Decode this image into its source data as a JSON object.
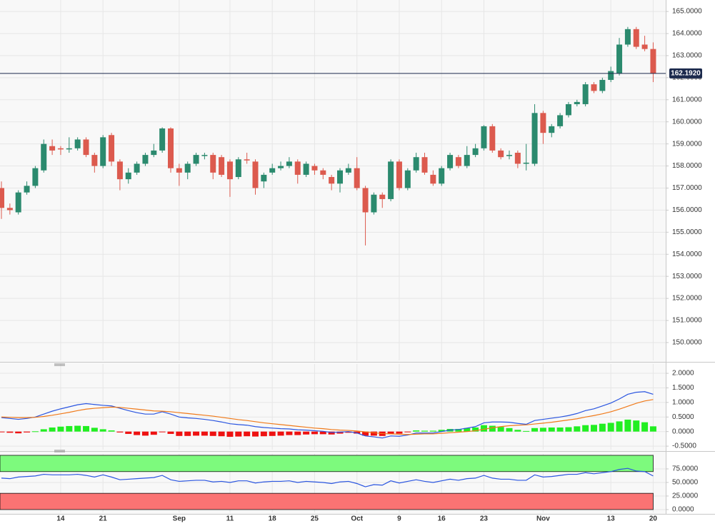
{
  "chart_data": [
    {
      "type": "candlestick",
      "categories": [
        null,
        null,
        null,
        null,
        null,
        null,
        null,
        "14",
        null,
        null,
        null,
        null,
        "21",
        null,
        null,
        null,
        null,
        null,
        null,
        null,
        null,
        "Sep",
        null,
        null,
        null,
        null,
        null,
        "11",
        null,
        null,
        null,
        null,
        "18",
        null,
        null,
        null,
        null,
        "25",
        null,
        null,
        null,
        null,
        "Oct",
        null,
        null,
        null,
        null,
        "9",
        null,
        null,
        null,
        null,
        "16",
        null,
        null,
        null,
        null,
        "23",
        null,
        null,
        null,
        null,
        null,
        null,
        "Nov",
        null,
        null,
        null,
        null,
        null,
        null,
        null,
        "13",
        null,
        null,
        null,
        null,
        "20"
      ],
      "open": [
        157.0,
        156.1,
        155.9,
        156.8,
        157.1,
        157.8,
        158.9,
        158.8,
        158.75,
        158.8,
        159.2,
        158.5,
        158.0,
        159.4,
        158.2,
        157.4,
        157.7,
        158.1,
        158.5,
        158.7,
        159.7,
        157.9,
        157.7,
        158.1,
        158.45,
        158.5,
        158.4,
        158.2,
        157.5,
        158.3,
        158.2,
        157.3,
        157.7,
        157.9,
        158.0,
        158.2,
        157.6,
        158.0,
        157.8,
        157.5,
        157.2,
        157.7,
        157.9,
        157.0,
        155.9,
        156.7,
        156.5,
        158.2,
        157.0,
        157.8,
        158.4,
        157.6,
        157.2,
        157.9,
        158.4,
        158.0,
        158.5,
        158.8,
        159.8,
        158.7,
        158.45,
        158.6,
        158.1,
        158.1,
        160.4,
        159.5,
        159.8,
        160.3,
        160.8,
        160.8,
        161.7,
        161.4,
        161.9,
        162.2,
        163.5,
        164.2,
        163.5,
        163.3
      ],
      "high": [
        157.3,
        156.3,
        156.9,
        157.3,
        158.0,
        159.2,
        159.2,
        158.9,
        159.3,
        159.3,
        159.3,
        158.6,
        159.4,
        159.5,
        158.3,
        157.9,
        158.2,
        158.6,
        159.0,
        159.75,
        159.75,
        158.1,
        158.2,
        158.6,
        158.6,
        158.6,
        158.5,
        158.3,
        158.4,
        158.6,
        158.3,
        157.7,
        158.1,
        158.2,
        158.4,
        158.3,
        158.2,
        158.1,
        157.9,
        157.6,
        157.9,
        158.1,
        158.4,
        157.1,
        156.8,
        156.8,
        158.3,
        158.3,
        157.9,
        158.6,
        158.6,
        157.8,
        158.0,
        158.6,
        158.5,
        158.9,
        159.0,
        159.85,
        159.9,
        158.8,
        158.7,
        158.7,
        159.0,
        160.8,
        160.5,
        159.9,
        160.4,
        160.9,
        161.0,
        161.8,
        161.8,
        162.0,
        162.5,
        163.8,
        164.3,
        164.3,
        163.9,
        163.6
      ],
      "low": [
        155.6,
        155.8,
        155.8,
        156.7,
        157.0,
        157.7,
        158.5,
        158.5,
        158.6,
        158.7,
        158.4,
        157.7,
        157.9,
        158.0,
        156.9,
        157.2,
        157.6,
        158.0,
        158.4,
        158.6,
        157.7,
        157.1,
        157.4,
        158.0,
        158.3,
        157.4,
        157.5,
        156.6,
        157.4,
        158.1,
        156.7,
        157.0,
        157.6,
        157.8,
        157.9,
        157.2,
        157.5,
        157.6,
        157.4,
        156.9,
        156.8,
        157.6,
        156.9,
        154.4,
        155.8,
        156.1,
        156.4,
        156.9,
        156.9,
        157.7,
        157.6,
        157.1,
        157.1,
        157.8,
        157.9,
        157.9,
        158.4,
        158.7,
        158.6,
        158.3,
        158.3,
        157.9,
        157.8,
        158.0,
        159.0,
        159.3,
        159.7,
        160.2,
        160.7,
        160.7,
        161.3,
        161.3,
        161.8,
        162.1,
        163.4,
        163.3,
        163.2,
        161.8
      ],
      "close": [
        156.1,
        156.0,
        156.8,
        157.1,
        157.9,
        159.0,
        158.7,
        158.75,
        158.8,
        159.2,
        158.5,
        158.0,
        159.3,
        158.2,
        157.4,
        157.7,
        158.1,
        158.5,
        158.7,
        159.7,
        157.9,
        157.7,
        158.1,
        158.5,
        158.5,
        157.7,
        157.6,
        157.4,
        158.3,
        158.25,
        157.0,
        157.6,
        157.9,
        158.0,
        158.2,
        157.6,
        158.1,
        157.8,
        157.6,
        157.2,
        157.8,
        157.9,
        157.0,
        155.9,
        156.7,
        156.5,
        158.2,
        157.0,
        157.8,
        158.4,
        157.7,
        157.2,
        157.9,
        158.5,
        158.0,
        158.5,
        158.8,
        159.8,
        158.7,
        158.4,
        158.5,
        158.1,
        158.15,
        160.4,
        159.5,
        159.8,
        160.3,
        160.8,
        160.9,
        161.7,
        161.4,
        161.9,
        162.3,
        163.5,
        164.2,
        163.4,
        163.3,
        162.192
      ],
      "up_color": "#2b8a6e",
      "down_color": "#dc5a4e",
      "ylim": [
        149.19,
        165.52
      ],
      "yticks": [
        {
          "value": 150,
          "label": "150.0000"
        },
        {
          "value": 151,
          "label": "151.0000"
        },
        {
          "value": 152,
          "label": "152.0000"
        },
        {
          "value": 153,
          "label": "153.0000"
        },
        {
          "value": 154,
          "label": "154.0000"
        },
        {
          "value": 155,
          "label": "155.0000"
        },
        {
          "value": 156,
          "label": "156.0000"
        },
        {
          "value": 157,
          "label": "157.0000"
        },
        {
          "value": 158,
          "label": "158.0000"
        },
        {
          "value": 159,
          "label": "159.0000"
        },
        {
          "value": 160,
          "label": "160.0000"
        },
        {
          "value": 161,
          "label": "161.0000"
        },
        {
          "value": 162,
          "label": "162.0000"
        },
        {
          "value": 163,
          "label": "163.0000"
        },
        {
          "value": 164,
          "label": "164.0000"
        },
        {
          "value": 165,
          "label": "165.0000"
        }
      ],
      "last_price": {
        "value": 162.192,
        "label": "162.1920",
        "color": "#1c2a4d"
      },
      "grid": true
    },
    {
      "type": "macd",
      "series": [
        {
          "kind": "histogram",
          "positive_color": "#22ee22",
          "negative_color": "#ee1111",
          "values": [
            -0.02,
            -0.04,
            -0.06,
            -0.03,
            0.01,
            0.08,
            0.14,
            0.17,
            0.19,
            0.2,
            0.19,
            0.13,
            0.08,
            0.04,
            -0.03,
            -0.08,
            -0.12,
            -0.14,
            -0.11,
            -0.02,
            -0.08,
            -0.15,
            -0.15,
            -0.14,
            -0.14,
            -0.15,
            -0.16,
            -0.18,
            -0.17,
            -0.16,
            -0.17,
            -0.16,
            -0.15,
            -0.14,
            -0.12,
            -0.12,
            -0.1,
            -0.09,
            -0.09,
            -0.1,
            -0.07,
            -0.04,
            -0.07,
            -0.14,
            -0.14,
            -0.15,
            -0.07,
            -0.07,
            -0.02,
            0.04,
            0.03,
            0.03,
            0.06,
            0.09,
            0.09,
            0.12,
            0.14,
            0.22,
            0.2,
            0.16,
            0.12,
            0.06,
            0.02,
            0.12,
            0.13,
            0.14,
            0.14,
            0.15,
            0.18,
            0.22,
            0.23,
            0.27,
            0.3,
            0.35,
            0.41,
            0.38,
            0.32,
            0.18
          ]
        },
        {
          "kind": "line",
          "color": "#2a55e0",
          "values": [
            0.48,
            0.45,
            0.42,
            0.45,
            0.5,
            0.6,
            0.7,
            0.78,
            0.85,
            0.92,
            0.96,
            0.93,
            0.9,
            0.88,
            0.8,
            0.72,
            0.65,
            0.6,
            0.6,
            0.68,
            0.6,
            0.5,
            0.47,
            0.45,
            0.42,
            0.38,
            0.33,
            0.27,
            0.24,
            0.22,
            0.17,
            0.14,
            0.12,
            0.1,
            0.09,
            0.06,
            0.05,
            0.03,
            0.01,
            -0.03,
            -0.02,
            0.0,
            -0.05,
            -0.15,
            -0.18,
            -0.22,
            -0.15,
            -0.16,
            -0.12,
            -0.05,
            -0.05,
            -0.05,
            0.0,
            0.05,
            0.07,
            0.12,
            0.17,
            0.3,
            0.33,
            0.33,
            0.32,
            0.28,
            0.25,
            0.38,
            0.42,
            0.46,
            0.5,
            0.55,
            0.62,
            0.72,
            0.78,
            0.88,
            0.98,
            1.12,
            1.28,
            1.35,
            1.37,
            1.28
          ]
        },
        {
          "kind": "line",
          "color": "#f07a1a",
          "values": [
            0.5,
            0.49,
            0.48,
            0.48,
            0.49,
            0.52,
            0.56,
            0.61,
            0.66,
            0.72,
            0.77,
            0.8,
            0.82,
            0.84,
            0.83,
            0.8,
            0.77,
            0.74,
            0.71,
            0.7,
            0.68,
            0.65,
            0.62,
            0.59,
            0.56,
            0.53,
            0.49,
            0.45,
            0.41,
            0.38,
            0.34,
            0.3,
            0.27,
            0.24,
            0.21,
            0.18,
            0.15,
            0.12,
            0.1,
            0.07,
            0.05,
            0.04,
            0.02,
            -0.01,
            -0.04,
            -0.07,
            -0.08,
            -0.09,
            -0.1,
            -0.09,
            -0.08,
            -0.08,
            -0.06,
            -0.04,
            -0.02,
            0.0,
            0.03,
            0.08,
            0.13,
            0.17,
            0.2,
            0.22,
            0.23,
            0.26,
            0.29,
            0.32,
            0.36,
            0.4,
            0.44,
            0.5,
            0.55,
            0.61,
            0.68,
            0.77,
            0.87,
            0.97,
            1.05,
            1.1
          ]
        }
      ],
      "ylim": [
        -0.62,
        2.32
      ],
      "yticks": [
        {
          "value": 2,
          "label": "2.0000"
        },
        {
          "value": 1.5,
          "label": "1.5000"
        },
        {
          "value": 1,
          "label": "1.0000"
        },
        {
          "value": 0.5,
          "label": "0.5000"
        },
        {
          "value": 0,
          "label": "0.0000"
        },
        {
          "value": -0.5,
          "label": "-0.5000"
        }
      ],
      "grid": true
    },
    {
      "type": "rsi",
      "values": [
        58,
        57,
        60,
        61,
        62,
        65,
        64,
        64,
        64,
        65,
        63,
        60,
        64,
        60,
        55,
        56,
        57,
        58,
        59,
        63,
        55,
        52,
        53,
        54,
        54,
        51,
        52,
        50,
        53,
        53,
        49,
        51,
        52,
        52,
        53,
        50,
        52,
        51,
        50,
        48,
        51,
        52,
        48,
        42,
        46,
        45,
        53,
        49,
        52,
        55,
        52,
        50,
        53,
        56,
        54,
        57,
        58,
        63,
        58,
        56,
        56,
        54,
        54,
        64,
        60,
        61,
        63,
        65,
        65,
        68,
        66,
        68,
        70,
        74,
        76,
        71,
        70,
        62
      ],
      "color": "#2a55e0",
      "overbought_zone": [
        70,
        100
      ],
      "overbought_color": "#7dfa7d",
      "oversold_zone": [
        0,
        30
      ],
      "oversold_color": "#fa7373",
      "ylim": [
        -5.3,
        102.6
      ],
      "yticks": [
        {
          "value": 75,
          "label": "75.0000"
        },
        {
          "value": 50,
          "label": "50.0000"
        },
        {
          "value": 25,
          "label": "25.0000"
        },
        {
          "value": 0,
          "label": "0.0000"
        }
      ],
      "grid": true
    }
  ]
}
